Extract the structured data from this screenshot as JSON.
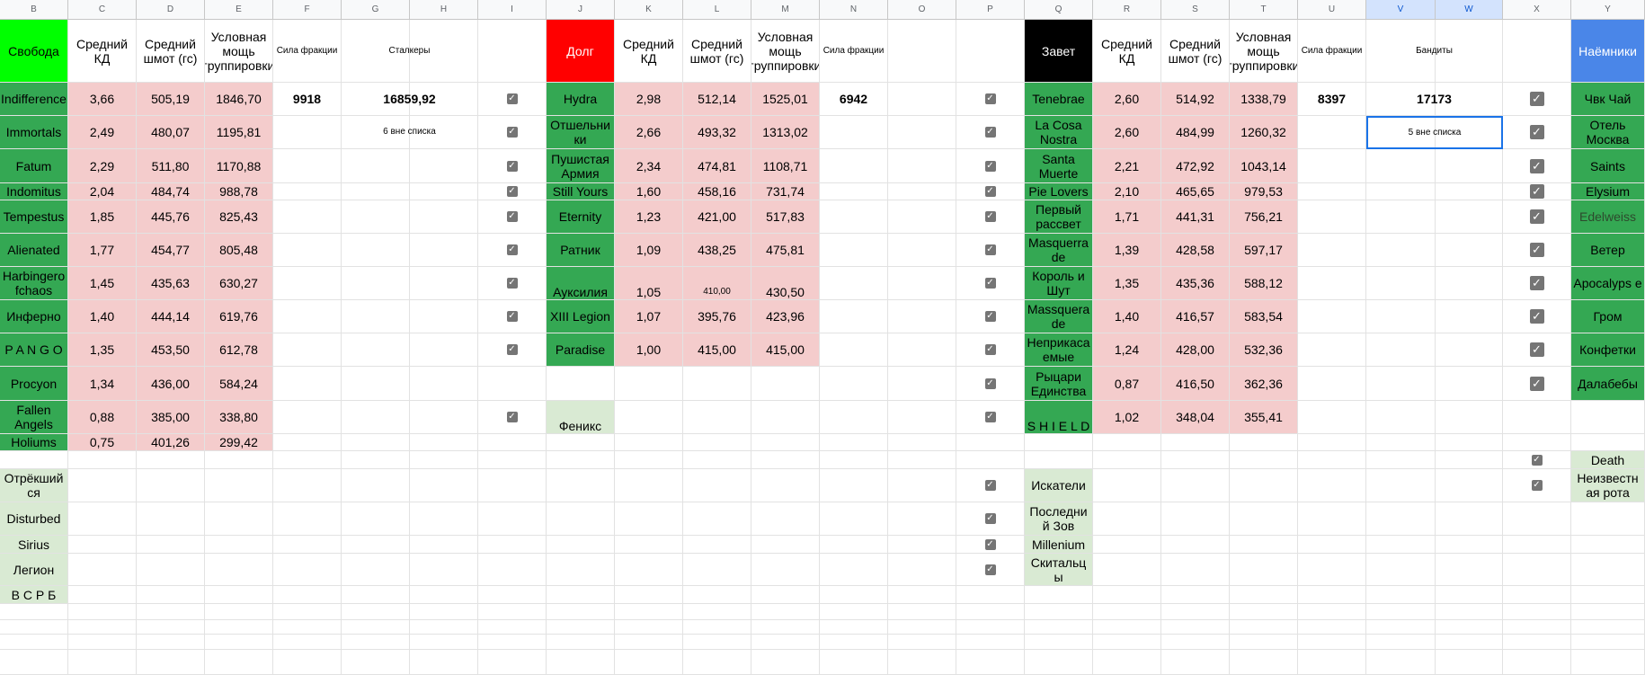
{
  "col_headers": [
    "B",
    "C",
    "D",
    "E",
    "F",
    "G",
    "H",
    "I",
    "J",
    "K",
    "L",
    "M",
    "N",
    "O",
    "P",
    "Q",
    "R",
    "S",
    "T",
    "U",
    "V",
    "W",
    "X",
    "Y"
  ],
  "header_row": {
    "freedom": "Свобода",
    "kd": "Средний КД",
    "gear": "Средний шмот (гс)",
    "power": "Условная мощь группировки",
    "faction_strength": "Сила фракции",
    "stalkers": "Сталкеры",
    "duty": "Долг",
    "kd2": "Средний КД",
    "gear2": "Средний шмот (гс)",
    "power2": "Условная мощь группировки",
    "faction_strength2": "Сила фракции",
    "covenant": "Завет",
    "kd3": "Средний КД",
    "gear3": "Средний шмот (гс)",
    "power3": "Условная мощь группировки",
    "faction_strength3": "Сила фракции",
    "bandits": "Бандиты",
    "mercenaries": "Наёмники"
  },
  "summary": {
    "freedom_strength": "9918",
    "stalkers_total": "16859,92",
    "stalkers_note": "6 вне списка",
    "duty_strength": "6942",
    "covenant_strength": "8397",
    "bandits_total": "17173",
    "bandits_note": "5 вне списка"
  },
  "freedom_groups": [
    {
      "name": "Indifference",
      "kd": "3,66",
      "gear": "505,19",
      "power": "1846,70"
    },
    {
      "name": "Immortals",
      "kd": "2,49",
      "gear": "480,07",
      "power": "1195,81"
    },
    {
      "name": "Fatum",
      "kd": "2,29",
      "gear": "511,80",
      "power": "1170,88"
    },
    {
      "name": "Indomitus",
      "kd": "2,04",
      "gear": "484,74",
      "power": "988,78"
    },
    {
      "name": "Tempestus",
      "kd": "1,85",
      "gear": "445,76",
      "power": "825,43"
    },
    {
      "name": "Alienated",
      "kd": "1,77",
      "gear": "454,77",
      "power": "805,48"
    },
    {
      "name": "Harbingero fchaos",
      "kd": "1,45",
      "gear": "435,63",
      "power": "630,27"
    },
    {
      "name": "Инферно",
      "kd": "1,40",
      "gear": "444,14",
      "power": "619,76"
    },
    {
      "name": "P A N G O",
      "kd": "1,35",
      "gear": "453,50",
      "power": "612,78"
    },
    {
      "name": "Procyon",
      "kd": "1,34",
      "gear": "436,00",
      "power": "584,24"
    },
    {
      "name": "Fallen Angels",
      "kd": "0,88",
      "gear": "385,00",
      "power": "338,80"
    },
    {
      "name": "Holiums",
      "kd": "0,75",
      "gear": "401,26",
      "power": "299,42"
    }
  ],
  "freedom_extra": [
    "Отрёкший ся",
    "Disturbed",
    "Sirius",
    "Легион",
    "В С Р Б"
  ],
  "duty_groups": [
    {
      "name": "Hydra",
      "kd": "2,98",
      "gear": "512,14",
      "power": "1525,01"
    },
    {
      "name": "Отшельни ки",
      "kd": "2,66",
      "gear": "493,32",
      "power": "1313,02"
    },
    {
      "name": "Пушистая Армия",
      "kd": "2,34",
      "gear": "474,81",
      "power": "1108,71"
    },
    {
      "name": "Still Yours",
      "kd": "1,60",
      "gear": "458,16",
      "power": "731,74"
    },
    {
      "name": "Eternity",
      "kd": "1,23",
      "gear": "421,00",
      "power": "517,83"
    },
    {
      "name": "Ратник",
      "kd": "1,09",
      "gear": "438,25",
      "power": "475,81"
    },
    {
      "name": "Ауксилия",
      "kd": "1,05",
      "gear": "410,00",
      "power": "430,50"
    },
    {
      "name": "XIII Legion",
      "kd": "1,07",
      "gear": "395,76",
      "power": "423,96"
    },
    {
      "name": "Paradise",
      "kd": "1,00",
      "gear": "415,00",
      "power": "415,00"
    }
  ],
  "duty_extra": "Феникс",
  "covenant_groups": [
    {
      "name": "Tenebrae",
      "kd": "2,60",
      "gear": "514,92",
      "power": "1338,79"
    },
    {
      "name": "La Cosa Nostra",
      "kd": "2,60",
      "gear": "484,99",
      "power": "1260,32"
    },
    {
      "name": "Santa Muerte",
      "kd": "2,21",
      "gear": "472,92",
      "power": "1043,14"
    },
    {
      "name": "Pie Lovers",
      "kd": "2,10",
      "gear": "465,65",
      "power": "979,53"
    },
    {
      "name": "Первый рассвет",
      "kd": "1,71",
      "gear": "441,31",
      "power": "756,21"
    },
    {
      "name": "Masquerra de",
      "kd": "1,39",
      "gear": "428,58",
      "power": "597,17"
    },
    {
      "name": "Король и Шут",
      "kd": "1,35",
      "gear": "435,36",
      "power": "588,12"
    },
    {
      "name": "Massquera de",
      "kd": "1,40",
      "gear": "416,57",
      "power": "583,54"
    },
    {
      "name": "Неприкаса емые",
      "kd": "1,24",
      "gear": "428,00",
      "power": "532,36"
    },
    {
      "name": "Рыцари Единства",
      "kd": "0,87",
      "gear": "416,50",
      "power": "362,36"
    },
    {
      "name": "S H I E L D",
      "kd": "1,02",
      "gear": "348,04",
      "power": "355,41"
    }
  ],
  "covenant_extra": [
    "Искатели",
    "Последни й Зов",
    "Millenium",
    "Скитальц ы"
  ],
  "mercenaries": [
    "Чвк Чай",
    "Отель Москва",
    "Saints",
    "Elysium",
    "Edelweiss",
    "Ветер",
    "Apocalyps e",
    "Гром",
    "Конфетки",
    "Далабебы"
  ],
  "mercenaries_extra": [
    "Death",
    "Неизвестн ая рота"
  ],
  "colors": {
    "freedom_header": "#00ff00",
    "duty_header": "#ff0000",
    "covenant_header": "#000000",
    "mercenaries_header": "#4a86e8",
    "group_green": "#34a853",
    "light_green": "#d9ead3",
    "pink": "#f4cccc",
    "grid": "#e2e2e2"
  },
  "checkbox_icon": "checkmark-icon"
}
